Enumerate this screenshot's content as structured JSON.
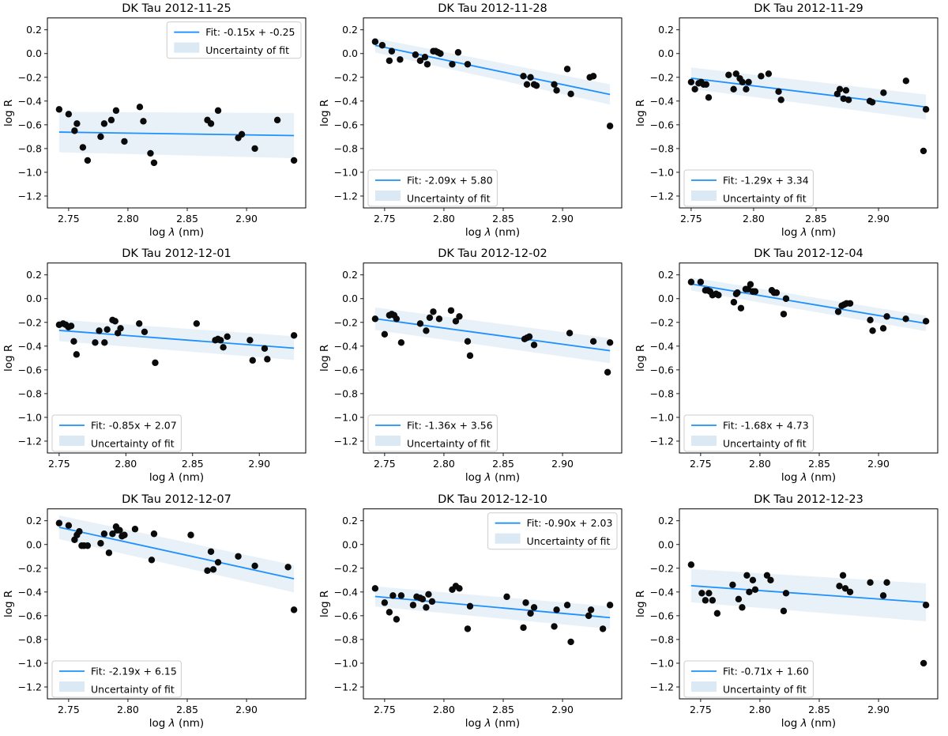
{
  "figure": {
    "description": "3x3 grid of scatter plots with linear fits for DK Tau spectra on nine dates"
  },
  "axes_config": {
    "xlabel": "log λ (nm)",
    "ylabel": "log R",
    "xticks": [
      2.75,
      2.8,
      2.85,
      2.9
    ],
    "yticks": [
      0.2,
      0.0,
      -0.2,
      -0.4,
      -0.6,
      -0.8,
      -1.0,
      -1.2
    ],
    "ylim": [
      -1.3,
      0.3
    ],
    "grid": false
  },
  "legend": {
    "uncertainty_label": "Uncertainty of fit"
  },
  "colors": {
    "fit_line": "#1e90ff",
    "band": "#e8f1f8",
    "legend_patch": "#dbe9f4",
    "marker": "#0a0a0a",
    "frame": "#000000",
    "legend_border": "#cccccc"
  },
  "chart_data": [
    {
      "type": "scatter",
      "title": "DK Tau 2012-11-25",
      "fit_label": "Fit: -0.15x + -0.25",
      "slope": -0.15,
      "intercept": -0.25,
      "legend_position": "upper right",
      "band_halfwidth": [
        0.17,
        0.19
      ],
      "points": [
        [
          2.742,
          -0.47
        ],
        [
          2.75,
          -0.51
        ],
        [
          2.755,
          -0.65
        ],
        [
          2.757,
          -0.59
        ],
        [
          2.762,
          -0.79
        ],
        [
          2.766,
          -0.9
        ],
        [
          2.777,
          -0.7
        ],
        [
          2.78,
          -0.59
        ],
        [
          2.786,
          -0.56
        ],
        [
          2.79,
          -0.48
        ],
        [
          2.797,
          -0.74
        ],
        [
          2.81,
          -0.45
        ],
        [
          2.813,
          -0.57
        ],
        [
          2.819,
          -0.84
        ],
        [
          2.822,
          -0.92
        ],
        [
          2.867,
          -0.56
        ],
        [
          2.87,
          -0.59
        ],
        [
          2.876,
          -0.48
        ],
        [
          2.893,
          -0.71
        ],
        [
          2.896,
          -0.68
        ],
        [
          2.907,
          -0.8
        ],
        [
          2.926,
          -0.56
        ],
        [
          2.94,
          -0.9
        ]
      ]
    },
    {
      "type": "scatter",
      "title": "DK Tau 2012-11-28",
      "fit_label": "Fit: -2.09x + 5.80",
      "slope": -2.09,
      "intercept": 5.8,
      "legend_position": "lower left",
      "band_halfwidth": [
        0.06,
        0.085
      ],
      "points": [
        [
          2.742,
          0.1
        ],
        [
          2.748,
          0.07
        ],
        [
          2.754,
          -0.06
        ],
        [
          2.756,
          0.02
        ],
        [
          2.763,
          -0.05
        ],
        [
          2.776,
          -0.01
        ],
        [
          2.78,
          -0.06
        ],
        [
          2.784,
          -0.03
        ],
        [
          2.786,
          -0.09
        ],
        [
          2.791,
          0.02
        ],
        [
          2.793,
          0.02
        ],
        [
          2.795,
          0.01
        ],
        [
          2.797,
          0.0
        ],
        [
          2.807,
          -0.09
        ],
        [
          2.812,
          0.01
        ],
        [
          2.82,
          -0.09
        ],
        [
          2.867,
          -0.19
        ],
        [
          2.87,
          -0.26
        ],
        [
          2.873,
          -0.2
        ],
        [
          2.876,
          -0.26
        ],
        [
          2.878,
          -0.27
        ],
        [
          2.893,
          -0.26
        ],
        [
          2.895,
          -0.31
        ],
        [
          2.904,
          -0.13
        ],
        [
          2.907,
          -0.34
        ],
        [
          2.923,
          -0.2
        ],
        [
          2.926,
          -0.19
        ],
        [
          2.94,
          -0.61
        ]
      ]
    },
    {
      "type": "scatter",
      "title": "DK Tau 2012-11-29",
      "fit_label": "Fit: -1.29x + 3.34",
      "slope": -1.29,
      "intercept": 3.34,
      "legend_position": "lower left",
      "band_halfwidth": [
        0.09,
        0.105
      ],
      "points": [
        [
          2.75,
          -0.24
        ],
        [
          2.753,
          -0.3
        ],
        [
          2.756,
          -0.25
        ],
        [
          2.758,
          -0.24
        ],
        [
          2.76,
          -0.26
        ],
        [
          2.762,
          -0.26
        ],
        [
          2.764,
          -0.37
        ],
        [
          2.78,
          -0.18
        ],
        [
          2.784,
          -0.3
        ],
        [
          2.786,
          -0.17
        ],
        [
          2.789,
          -0.21
        ],
        [
          2.791,
          -0.24
        ],
        [
          2.794,
          -0.3
        ],
        [
          2.796,
          -0.24
        ],
        [
          2.806,
          -0.19
        ],
        [
          2.812,
          -0.17
        ],
        [
          2.82,
          -0.32
        ],
        [
          2.822,
          -0.39
        ],
        [
          2.867,
          -0.34
        ],
        [
          2.869,
          -0.3
        ],
        [
          2.872,
          -0.38
        ],
        [
          2.874,
          -0.31
        ],
        [
          2.876,
          -0.39
        ],
        [
          2.893,
          -0.4
        ],
        [
          2.895,
          -0.41
        ],
        [
          2.904,
          -0.33
        ],
        [
          2.922,
          -0.23
        ],
        [
          2.936,
          -0.82
        ],
        [
          2.938,
          -0.47
        ]
      ]
    },
    {
      "type": "scatter",
      "title": "DK Tau 2012-12-01",
      "fit_label": "Fit: -0.85x + 2.07",
      "slope": -0.85,
      "intercept": 2.07,
      "legend_position": "lower left",
      "band_halfwidth": [
        0.09,
        0.1
      ],
      "points": [
        [
          2.75,
          -0.22
        ],
        [
          2.753,
          -0.21
        ],
        [
          2.755,
          -0.22
        ],
        [
          2.757,
          -0.24
        ],
        [
          2.759,
          -0.23
        ],
        [
          2.761,
          -0.36
        ],
        [
          2.763,
          -0.47
        ],
        [
          2.777,
          -0.37
        ],
        [
          2.78,
          -0.27
        ],
        [
          2.784,
          -0.37
        ],
        [
          2.786,
          -0.26
        ],
        [
          2.79,
          -0.18
        ],
        [
          2.792,
          -0.19
        ],
        [
          2.794,
          -0.29
        ],
        [
          2.796,
          -0.25
        ],
        [
          2.81,
          -0.21
        ],
        [
          2.814,
          -0.28
        ],
        [
          2.822,
          -0.54
        ],
        [
          2.853,
          -0.21
        ],
        [
          2.867,
          -0.35
        ],
        [
          2.869,
          -0.34
        ],
        [
          2.871,
          -0.35
        ],
        [
          2.873,
          -0.41
        ],
        [
          2.876,
          -0.32
        ],
        [
          2.893,
          -0.35
        ],
        [
          2.895,
          -0.52
        ],
        [
          2.904,
          -0.42
        ],
        [
          2.906,
          -0.51
        ],
        [
          2.926,
          -0.31
        ]
      ]
    },
    {
      "type": "scatter",
      "title": "DK Tau 2012-12-02",
      "fit_label": "Fit: -1.36x + 3.56",
      "slope": -1.36,
      "intercept": 3.56,
      "legend_position": "lower left",
      "band_halfwidth": [
        0.095,
        0.105
      ],
      "points": [
        [
          2.742,
          -0.17
        ],
        [
          2.75,
          -0.3
        ],
        [
          2.754,
          -0.14
        ],
        [
          2.756,
          -0.13
        ],
        [
          2.758,
          -0.14
        ],
        [
          2.76,
          -0.17
        ],
        [
          2.764,
          -0.37
        ],
        [
          2.78,
          -0.21
        ],
        [
          2.785,
          -0.27
        ],
        [
          2.788,
          -0.16
        ],
        [
          2.791,
          -0.11
        ],
        [
          2.796,
          -0.17
        ],
        [
          2.806,
          -0.1
        ],
        [
          2.81,
          -0.19
        ],
        [
          2.813,
          -0.15
        ],
        [
          2.82,
          -0.36
        ],
        [
          2.822,
          -0.48
        ],
        [
          2.868,
          -0.34
        ],
        [
          2.87,
          -0.33
        ],
        [
          2.872,
          -0.32
        ],
        [
          2.876,
          -0.39
        ],
        [
          2.906,
          -0.29
        ],
        [
          2.926,
          -0.36
        ],
        [
          2.938,
          -0.62
        ],
        [
          2.94,
          -0.37
        ]
      ]
    },
    {
      "type": "scatter",
      "title": "DK Tau 2012-12-04",
      "fit_label": "Fit: -1.68x + 4.73",
      "slope": -1.68,
      "intercept": 4.73,
      "legend_position": "lower left",
      "band_halfwidth": [
        0.055,
        0.065
      ],
      "points": [
        [
          2.742,
          0.14
        ],
        [
          2.75,
          0.14
        ],
        [
          2.754,
          0.07
        ],
        [
          2.756,
          0.07
        ],
        [
          2.758,
          0.06
        ],
        [
          2.76,
          0.03
        ],
        [
          2.763,
          0.04
        ],
        [
          2.765,
          0.03
        ],
        [
          2.778,
          -0.03
        ],
        [
          2.78,
          0.04
        ],
        [
          2.781,
          0.05
        ],
        [
          2.784,
          -0.08
        ],
        [
          2.788,
          0.08
        ],
        [
          2.79,
          0.08
        ],
        [
          2.792,
          0.12
        ],
        [
          2.794,
          0.06
        ],
        [
          2.796,
          0.06
        ],
        [
          2.81,
          0.07
        ],
        [
          2.812,
          0.05
        ],
        [
          2.814,
          0.05
        ],
        [
          2.82,
          -0.13
        ],
        [
          2.822,
          0.0
        ],
        [
          2.866,
          -0.11
        ],
        [
          2.869,
          -0.06
        ],
        [
          2.871,
          -0.05
        ],
        [
          2.873,
          -0.04
        ],
        [
          2.876,
          -0.04
        ],
        [
          2.893,
          -0.18
        ],
        [
          2.895,
          -0.27
        ],
        [
          2.904,
          -0.25
        ],
        [
          2.907,
          -0.15
        ],
        [
          2.923,
          -0.17
        ],
        [
          2.94,
          -0.19
        ]
      ]
    },
    {
      "type": "scatter",
      "title": "DK Tau 2012-12-07",
      "fit_label": "Fit: -2.19x + 6.15",
      "slope": -2.19,
      "intercept": 6.15,
      "legend_position": "lower left",
      "band_halfwidth": [
        0.1,
        0.115
      ],
      "points": [
        [
          2.742,
          0.18
        ],
        [
          2.75,
          0.16
        ],
        [
          2.755,
          0.04
        ],
        [
          2.757,
          0.08
        ],
        [
          2.759,
          0.11
        ],
        [
          2.761,
          -0.01
        ],
        [
          2.763,
          -0.01
        ],
        [
          2.766,
          -0.01
        ],
        [
          2.777,
          0.01
        ],
        [
          2.78,
          0.09
        ],
        [
          2.784,
          -0.07
        ],
        [
          2.787,
          0.09
        ],
        [
          2.79,
          0.15
        ],
        [
          2.791,
          0.12
        ],
        [
          2.793,
          0.12
        ],
        [
          2.795,
          0.07
        ],
        [
          2.797,
          0.08
        ],
        [
          2.806,
          0.13
        ],
        [
          2.82,
          -0.13
        ],
        [
          2.822,
          0.09
        ],
        [
          2.853,
          0.08
        ],
        [
          2.867,
          -0.22
        ],
        [
          2.87,
          -0.06
        ],
        [
          2.872,
          -0.21
        ],
        [
          2.876,
          -0.15
        ],
        [
          2.893,
          -0.1
        ],
        [
          2.907,
          -0.18
        ],
        [
          2.935,
          -0.19
        ],
        [
          2.94,
          -0.55
        ]
      ]
    },
    {
      "type": "scatter",
      "title": "DK Tau 2012-12-10",
      "fit_label": "Fit: -0.90x + 2.03",
      "slope": -0.9,
      "intercept": 2.03,
      "legend_position": "upper right",
      "band_halfwidth": [
        0.085,
        0.095
      ],
      "points": [
        [
          2.742,
          -0.37
        ],
        [
          2.75,
          -0.49
        ],
        [
          2.754,
          -0.57
        ],
        [
          2.757,
          -0.43
        ],
        [
          2.76,
          -0.63
        ],
        [
          2.764,
          -0.43
        ],
        [
          2.774,
          -0.51
        ],
        [
          2.777,
          -0.44
        ],
        [
          2.78,
          -0.45
        ],
        [
          2.782,
          -0.46
        ],
        [
          2.785,
          -0.53
        ],
        [
          2.787,
          -0.42
        ],
        [
          2.79,
          -0.48
        ],
        [
          2.807,
          -0.38
        ],
        [
          2.81,
          -0.35
        ],
        [
          2.813,
          -0.37
        ],
        [
          2.82,
          -0.71
        ],
        [
          2.822,
          -0.52
        ],
        [
          2.853,
          -0.44
        ],
        [
          2.867,
          -0.7
        ],
        [
          2.869,
          -0.49
        ],
        [
          2.873,
          -0.58
        ],
        [
          2.876,
          -0.53
        ],
        [
          2.893,
          -0.69
        ],
        [
          2.895,
          -0.55
        ],
        [
          2.904,
          -0.51
        ],
        [
          2.907,
          -0.82
        ],
        [
          2.922,
          -0.6
        ],
        [
          2.924,
          -0.55
        ],
        [
          2.934,
          -0.71
        ],
        [
          2.94,
          -0.51
        ]
      ]
    },
    {
      "type": "scatter",
      "title": "DK Tau 2012-12-23",
      "fit_label": "Fit: -0.71x + 1.60",
      "slope": -0.71,
      "intercept": 1.6,
      "legend_position": "lower left",
      "band_halfwidth": [
        0.14,
        0.16
      ],
      "points": [
        [
          2.742,
          -0.17
        ],
        [
          2.751,
          -0.41
        ],
        [
          2.754,
          -0.47
        ],
        [
          2.757,
          -0.41
        ],
        [
          2.76,
          -0.47
        ],
        [
          2.764,
          -0.58
        ],
        [
          2.777,
          -0.34
        ],
        [
          2.782,
          -0.46
        ],
        [
          2.785,
          -0.53
        ],
        [
          2.789,
          -0.26
        ],
        [
          2.791,
          -0.4
        ],
        [
          2.794,
          -0.3
        ],
        [
          2.796,
          -0.38
        ],
        [
          2.806,
          -0.26
        ],
        [
          2.809,
          -0.3
        ],
        [
          2.82,
          -0.56
        ],
        [
          2.822,
          -0.41
        ],
        [
          2.867,
          -0.35
        ],
        [
          2.87,
          -0.26
        ],
        [
          2.872,
          -0.37
        ],
        [
          2.876,
          -0.4
        ],
        [
          2.893,
          -0.32
        ],
        [
          2.904,
          -0.43
        ],
        [
          2.907,
          -0.32
        ],
        [
          2.938,
          -1.0
        ],
        [
          2.94,
          -0.51
        ]
      ]
    }
  ]
}
